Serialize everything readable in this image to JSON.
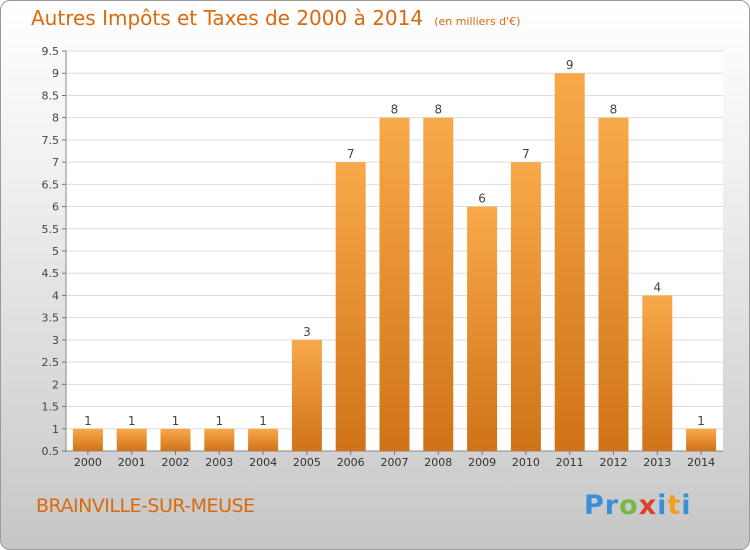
{
  "title": "Autres Impôts et Taxes de 2000 à 2014",
  "subtitle": "(en milliers d'€)",
  "location": "BRAINVILLE-SUR-MEUSE",
  "brand": {
    "letters": [
      "P",
      "r",
      "o",
      "x",
      "i",
      "t",
      "i"
    ],
    "colors": [
      "#3b8fd6",
      "#3b8fd6",
      "#7ab648",
      "#e03e2d",
      "#3b8fd6",
      "#f0a020",
      "#3b8fd6"
    ]
  },
  "colors": {
    "bar_light": "#f8a94a",
    "bar_dark": "#d07318",
    "text_accent": "#d96a0e",
    "grid": "#dddddd"
  },
  "chart_data": {
    "type": "bar",
    "title": "Autres Impôts et Taxes de 2000 à 2014",
    "subtitle": "(en milliers d'€)",
    "xlabel": "",
    "ylabel": "",
    "categories": [
      "2000",
      "2001",
      "2002",
      "2003",
      "2004",
      "2005",
      "2006",
      "2007",
      "2008",
      "2009",
      "2010",
      "2011",
      "2012",
      "2013",
      "2014"
    ],
    "values": [
      1,
      1,
      1,
      1,
      1,
      3,
      7,
      8,
      8,
      6,
      7,
      9,
      8,
      4,
      1
    ],
    "ylim": [
      0.5,
      9.5
    ],
    "yticks": [
      "0.5",
      "1",
      "1.5",
      "2",
      "2.5",
      "3",
      "3.5",
      "4",
      "4.5",
      "5",
      "5.5",
      "6",
      "6.5",
      "7",
      "7.5",
      "8",
      "8.5",
      "9",
      "9.5"
    ],
    "grid": true,
    "legend": "none"
  }
}
